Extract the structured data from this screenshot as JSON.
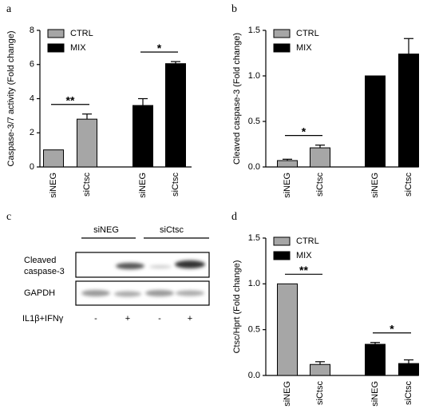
{
  "chart_data": [
    {
      "type": "bar",
      "panel": "a",
      "ylabel": "Caspase-3/7 activity  (Fold change)",
      "categories": [
        "siNEG",
        "siCtsc",
        "siNEG",
        "siCtsc"
      ],
      "series": [
        {
          "name": "CTRL",
          "color": "#a6a6a6",
          "values": [
            1,
            2.8,
            null,
            null
          ],
          "errors": [
            null,
            0.3,
            null,
            null
          ]
        },
        {
          "name": "MIX",
          "color": "#000000",
          "values": [
            null,
            null,
            3.6,
            6.05
          ],
          "errors": [
            null,
            null,
            0.4,
            0.12
          ]
        }
      ],
      "annotations": [
        "**",
        "*"
      ],
      "ylim": [
        0,
        8
      ],
      "yticks": [
        0,
        2,
        4,
        6,
        8
      ],
      "legend": "upper left"
    },
    {
      "type": "bar",
      "panel": "b",
      "ylabel": "Cleaved caspase-3 (Fold change)",
      "categories": [
        "siNEG",
        "siCtsc",
        "siNEG",
        "siCtsc"
      ],
      "series": [
        {
          "name": "CTRL",
          "color": "#a6a6a6",
          "values": [
            0.07,
            0.21,
            null,
            null
          ],
          "errors": [
            0.015,
            0.03,
            null,
            null
          ]
        },
        {
          "name": "MIX",
          "color": "#000000",
          "values": [
            null,
            null,
            1.0,
            1.24
          ],
          "errors": [
            null,
            null,
            null,
            0.17
          ]
        }
      ],
      "annotations": [
        "*"
      ],
      "ylim": [
        0,
        1.5
      ],
      "yticks": [
        {
          "value": 0,
          "label": "0.0"
        },
        0.5,
        {
          "value": 1,
          "label": "1.0"
        },
        1.5
      ],
      "legend": "upper left"
    },
    {
      "type": "bar",
      "panel": "d",
      "ylabel": "Ctsc/Hprt (Fold change)",
      "categories": [
        "siNEG",
        "siCtsc",
        "siNEG",
        "siCtsc"
      ],
      "series": [
        {
          "name": "CTRL",
          "color": "#a6a6a6",
          "values": [
            1.0,
            0.12,
            null,
            null
          ],
          "errors": [
            null,
            0.03,
            null,
            null
          ]
        },
        {
          "name": "MIX",
          "color": "#000000",
          "values": [
            null,
            null,
            0.34,
            0.13
          ],
          "errors": [
            null,
            null,
            0.02,
            0.04
          ]
        }
      ],
      "annotations": [
        "**",
        "*"
      ],
      "ylim": [
        0,
        1.5
      ],
      "yticks": [
        {
          "value": 0,
          "label": "0.0"
        },
        0.5,
        {
          "value": 1,
          "label": "1.0"
        },
        1.5
      ],
      "legend": "upper left"
    }
  ],
  "blot": {
    "panel": "c",
    "groups": [
      "siNEG",
      "siCtsc"
    ],
    "rows": [
      {
        "lines": [
          "Cleaved",
          "caspase-3"
        ]
      },
      {
        "lines": [
          "GAPDH"
        ]
      }
    ],
    "treatment": "IL1β+IFNγ",
    "lanes": [
      "-",
      "+",
      "-",
      "+"
    ]
  }
}
